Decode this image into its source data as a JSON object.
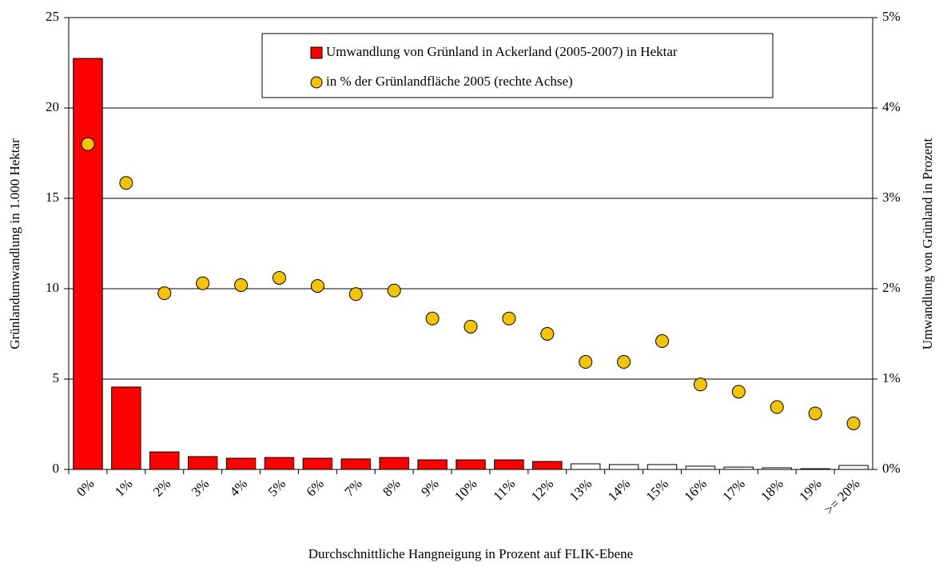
{
  "chart_data": {
    "type": "bar",
    "categories": [
      "0%",
      "1%",
      "2%",
      "3%",
      "4%",
      "5%",
      "6%",
      "7%",
      "8%",
      "9%",
      "10%",
      "11%",
      "12%",
      "13%",
      "14%",
      "15%",
      "16%",
      "17%",
      "18%",
      "19%",
      ">= 20%"
    ],
    "series": [
      {
        "name": "Umwandlung von Grünland in Ackerland (2005-2007) in Hektar",
        "type": "bar",
        "color": "#ff0000",
        "colors": [
          "#ff0000",
          "#ff0000",
          "#ff0000",
          "#ff0000",
          "#ff0000",
          "#ff0000",
          "#ff0000",
          "#ff0000",
          "#ff0000",
          "#ff0000",
          "#ff0000",
          "#ff0000",
          "#ff0000",
          "#ffffff",
          "#ffffff",
          "#ffffff",
          "#ffffff",
          "#ffffff",
          "#ffffff",
          "#ffffff",
          "#ffffff"
        ],
        "values": [
          22.74,
          4.56,
          0.97,
          0.71,
          0.62,
          0.66,
          0.62,
          0.58,
          0.66,
          0.53,
          0.53,
          0.53,
          0.44,
          0.31,
          0.27,
          0.27,
          0.18,
          0.13,
          0.09,
          0.04,
          0.22
        ]
      },
      {
        "name": "in % der Grünlandfläche 2005 (rechte Achse)",
        "type": "scatter",
        "axis": "y2",
        "color": "#f5c400",
        "values": [
          3.6,
          3.17,
          1.95,
          2.06,
          2.04,
          2.12,
          2.03,
          1.94,
          1.98,
          1.67,
          1.58,
          1.67,
          1.5,
          1.19,
          1.19,
          1.42,
          0.94,
          0.86,
          0.69,
          0.62,
          0.51
        ]
      }
    ],
    "ylim": [
      0,
      25
    ],
    "yticks": [
      0,
      5,
      10,
      15,
      20,
      25
    ],
    "y2lim": [
      0,
      5
    ],
    "y2ticks": [
      {
        "value": 0,
        "label": "0%"
      },
      {
        "value": 1,
        "label": "1%"
      },
      {
        "value": 2,
        "label": "2%"
      },
      {
        "value": 3,
        "label": "3%"
      },
      {
        "value": 4,
        "label": "4%"
      },
      {
        "value": 5,
        "label": "5%"
      }
    ],
    "ylabel": "Grünlandumwandlung in 1.000 Hektar",
    "y2label": "Umwandlung von Grünland in Prozent",
    "xlabel": "Durchschnittliche Hangneigung in Prozent auf FLIK-Ebene",
    "grid": true
  }
}
